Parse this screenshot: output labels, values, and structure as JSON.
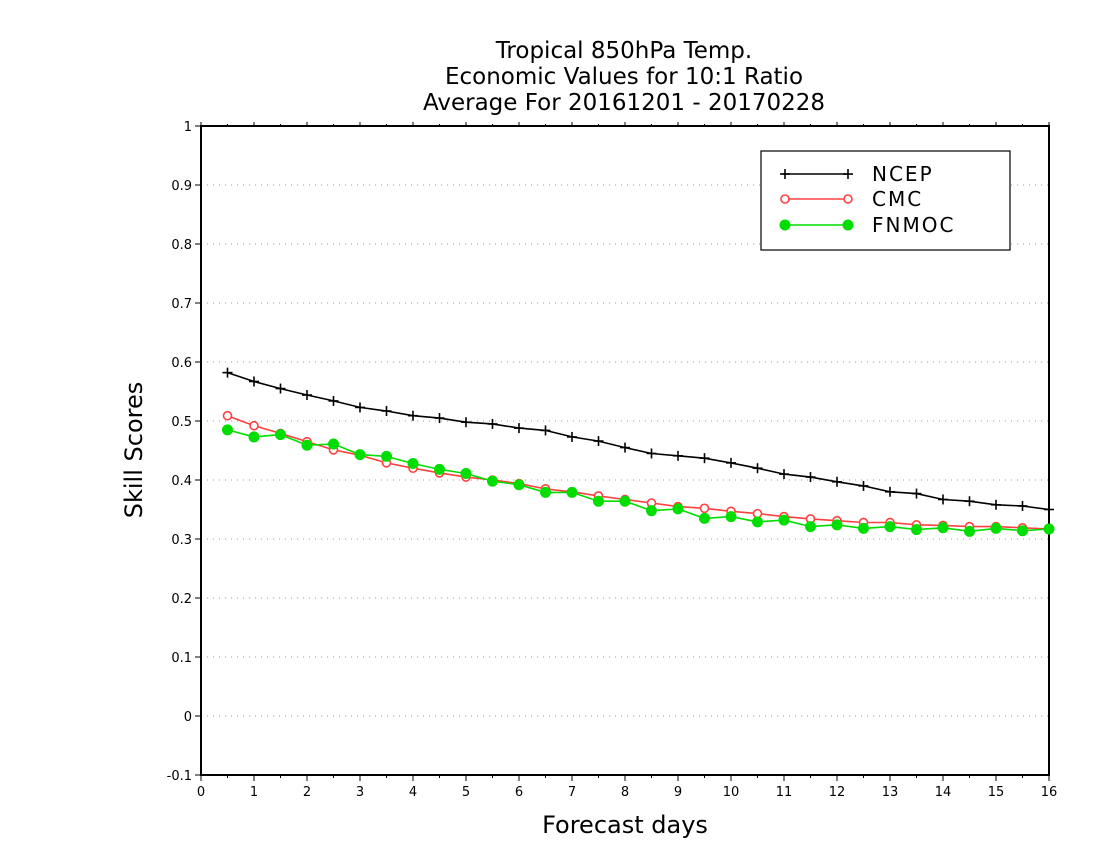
{
  "chart_data": {
    "type": "line",
    "title": [
      "Tropical 850hPa Temp.",
      "Economic Values for 10:1 Ratio",
      "Average For 20161201 - 20170228"
    ],
    "xlabel": "Forecast days",
    "ylabel": "Skill Scores",
    "xlim": [
      0,
      16
    ],
    "ylim": [
      -0.1,
      1
    ],
    "xticks": [
      0,
      1,
      2,
      3,
      4,
      5,
      6,
      7,
      8,
      9,
      10,
      11,
      12,
      13,
      14,
      15,
      16
    ],
    "yticks": [
      -0.1,
      0,
      0.1,
      0.2,
      0.3,
      0.4,
      0.5,
      0.6,
      0.7,
      0.8,
      0.9,
      1
    ],
    "ytick_labels": [
      "-0.1",
      "0",
      "0.1",
      "0.2",
      "0.3",
      "0.4",
      "0.5",
      "0.6",
      "0.7",
      "0.8",
      "0.9",
      "1"
    ],
    "grid": "horizontal-dotted",
    "legend_position": "top-right",
    "x": [
      0.5,
      1,
      1.5,
      2,
      2.5,
      3,
      3.5,
      4,
      4.5,
      5,
      5.5,
      6,
      6.5,
      7,
      7.5,
      8,
      8.5,
      9,
      9.5,
      10,
      10.5,
      11,
      11.5,
      12,
      12.5,
      13,
      13.5,
      14,
      14.5,
      15,
      15.5,
      16
    ],
    "series": [
      {
        "name": "NCEP",
        "color": "#000000",
        "marker": "plus",
        "values": [
          0.582,
          0.567,
          0.555,
          0.544,
          0.534,
          0.523,
          0.517,
          0.509,
          0.505,
          0.498,
          0.495,
          0.488,
          0.484,
          0.473,
          0.466,
          0.455,
          0.445,
          0.441,
          0.437,
          0.429,
          0.42,
          0.41,
          0.405,
          0.397,
          0.39,
          0.38,
          0.377,
          0.367,
          0.364,
          0.358,
          0.356,
          0.35
        ]
      },
      {
        "name": "CMC",
        "color": "#ff4040",
        "marker": "open-circle",
        "values": [
          0.509,
          0.492,
          0.479,
          0.465,
          0.451,
          0.442,
          0.429,
          0.42,
          0.412,
          0.405,
          0.4,
          0.394,
          0.385,
          0.38,
          0.373,
          0.367,
          0.361,
          0.355,
          0.352,
          0.347,
          0.343,
          0.338,
          0.334,
          0.331,
          0.328,
          0.328,
          0.324,
          0.323,
          0.321,
          0.321,
          0.319,
          0.317
        ]
      },
      {
        "name": "FNMOC",
        "color": "#00dd00",
        "marker": "filled-circle",
        "values": [
          0.485,
          0.473,
          0.477,
          0.459,
          0.461,
          0.443,
          0.44,
          0.428,
          0.418,
          0.411,
          0.398,
          0.392,
          0.379,
          0.379,
          0.364,
          0.364,
          0.348,
          0.351,
          0.335,
          0.338,
          0.329,
          0.332,
          0.321,
          0.324,
          0.318,
          0.321,
          0.316,
          0.319,
          0.313,
          0.318,
          0.314,
          0.317
        ]
      }
    ]
  }
}
